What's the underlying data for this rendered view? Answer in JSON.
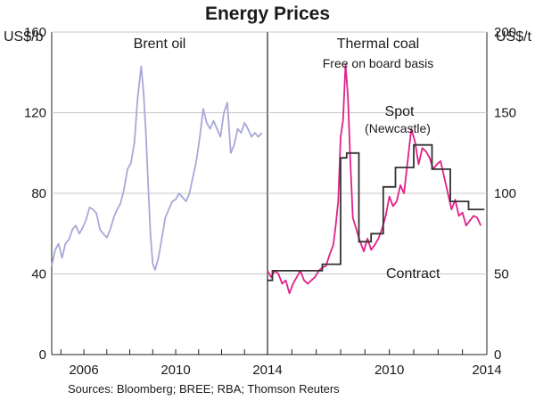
{
  "title": "Energy Prices",
  "source": "Sources: Bloomberg; BREE; RBA; Thomson Reuters",
  "chart_data": [
    {
      "type": "line",
      "panel_title": "Brent oil",
      "ylabel": "US$/b",
      "ylim": [
        0,
        160
      ],
      "yticks": [
        0,
        40,
        80,
        120,
        160
      ],
      "xlim": [
        2004.6,
        2014.0
      ],
      "xticks": [
        2006,
        2010,
        2014
      ],
      "series": [
        {
          "name": "Brent oil",
          "color": "#a8a8d8",
          "x": [
            2004.6,
            2004.75,
            2004.9,
            2005.05,
            2005.2,
            2005.35,
            2005.5,
            2005.65,
            2005.8,
            2005.95,
            2006.1,
            2006.25,
            2006.4,
            2006.55,
            2006.7,
            2006.85,
            2007.0,
            2007.15,
            2007.3,
            2007.45,
            2007.6,
            2007.75,
            2007.9,
            2008.05,
            2008.2,
            2008.35,
            2008.5,
            2008.6,
            2008.7,
            2008.8,
            2008.9,
            2009.0,
            2009.1,
            2009.25,
            2009.4,
            2009.55,
            2009.7,
            2009.85,
            2010.0,
            2010.15,
            2010.3,
            2010.45,
            2010.6,
            2010.75,
            2010.9,
            2011.05,
            2011.2,
            2011.35,
            2011.5,
            2011.65,
            2011.8,
            2011.95,
            2012.1,
            2012.25,
            2012.4,
            2012.55,
            2012.7,
            2012.85,
            2013.0,
            2013.15,
            2013.3,
            2013.45,
            2013.6,
            2013.75
          ],
          "values": [
            44,
            52,
            55,
            48,
            55,
            57,
            62,
            64,
            60,
            63,
            67,
            73,
            72,
            70,
            62,
            60,
            58,
            62,
            68,
            72,
            75,
            82,
            92,
            95,
            105,
            128,
            143,
            130,
            110,
            85,
            60,
            45,
            42,
            48,
            58,
            68,
            72,
            76,
            77,
            80,
            78,
            76,
            80,
            88,
            96,
            108,
            122,
            115,
            112,
            116,
            112,
            108,
            120,
            125,
            100,
            104,
            112,
            110,
            115,
            112,
            108,
            110,
            108,
            110
          ]
        }
      ]
    },
    {
      "type": "line",
      "panel_title": "Thermal coal",
      "panel_subtitle": "Free on board basis",
      "ylabel": "US$/t",
      "ylim": [
        0,
        200
      ],
      "yticks": [
        0,
        50,
        100,
        150,
        200
      ],
      "xlim": [
        2005.0,
        2014.0
      ],
      "xticks": [
        2010,
        2014
      ],
      "series": [
        {
          "name": "Spot",
          "label_line2": "(Newcastle)",
          "color": "#e0218a",
          "x": [
            2005.0,
            2005.15,
            2005.3,
            2005.45,
            2005.6,
            2005.75,
            2005.9,
            2006.05,
            2006.2,
            2006.35,
            2006.5,
            2006.65,
            2006.8,
            2006.95,
            2007.1,
            2007.25,
            2007.4,
            2007.55,
            2007.7,
            2007.8,
            2007.9,
            2008.0,
            2008.1,
            2008.2,
            2008.3,
            2008.4,
            2008.5,
            2008.6,
            2008.7,
            2008.8,
            2008.95,
            2009.1,
            2009.25,
            2009.4,
            2009.55,
            2009.7,
            2009.85,
            2010.0,
            2010.15,
            2010.3,
            2010.45,
            2010.6,
            2010.75,
            2010.9,
            2011.05,
            2011.2,
            2011.35,
            2011.5,
            2011.65,
            2011.8,
            2011.95,
            2012.1,
            2012.25,
            2012.4,
            2012.55,
            2012.7,
            2012.85,
            2013.0,
            2013.15,
            2013.3,
            2013.45,
            2013.6,
            2013.75
          ],
          "values": [
            52,
            48,
            52,
            50,
            44,
            46,
            38,
            44,
            48,
            52,
            46,
            44,
            46,
            48,
            52,
            54,
            55,
            62,
            68,
            80,
            95,
            135,
            145,
            180,
            160,
            120,
            85,
            80,
            75,
            70,
            64,
            72,
            65,
            68,
            72,
            78,
            86,
            98,
            92,
            95,
            105,
            100,
            120,
            140,
            132,
            118,
            128,
            126,
            122,
            115,
            118,
            120,
            110,
            100,
            90,
            96,
            86,
            88,
            80,
            83,
            86,
            85,
            80
          ]
        },
        {
          "name": "Contract",
          "color": "#333333",
          "x": [
            2005.0,
            2005.2,
            2005.2,
            2007.25,
            2007.25,
            2008.0,
            2008.0,
            2008.25,
            2008.25,
            2008.75,
            2008.75,
            2009.25,
            2009.25,
            2009.75,
            2009.75,
            2010.25,
            2010.25,
            2011.0,
            2011.0,
            2011.75,
            2011.75,
            2012.5,
            2012.5,
            2013.25,
            2013.25,
            2013.9
          ],
          "values": [
            46,
            46,
            52,
            52,
            56,
            56,
            122,
            122,
            125,
            125,
            70,
            70,
            75,
            75,
            104,
            104,
            116,
            116,
            130,
            130,
            115,
            115,
            95,
            95,
            90,
            90
          ]
        }
      ]
    }
  ]
}
